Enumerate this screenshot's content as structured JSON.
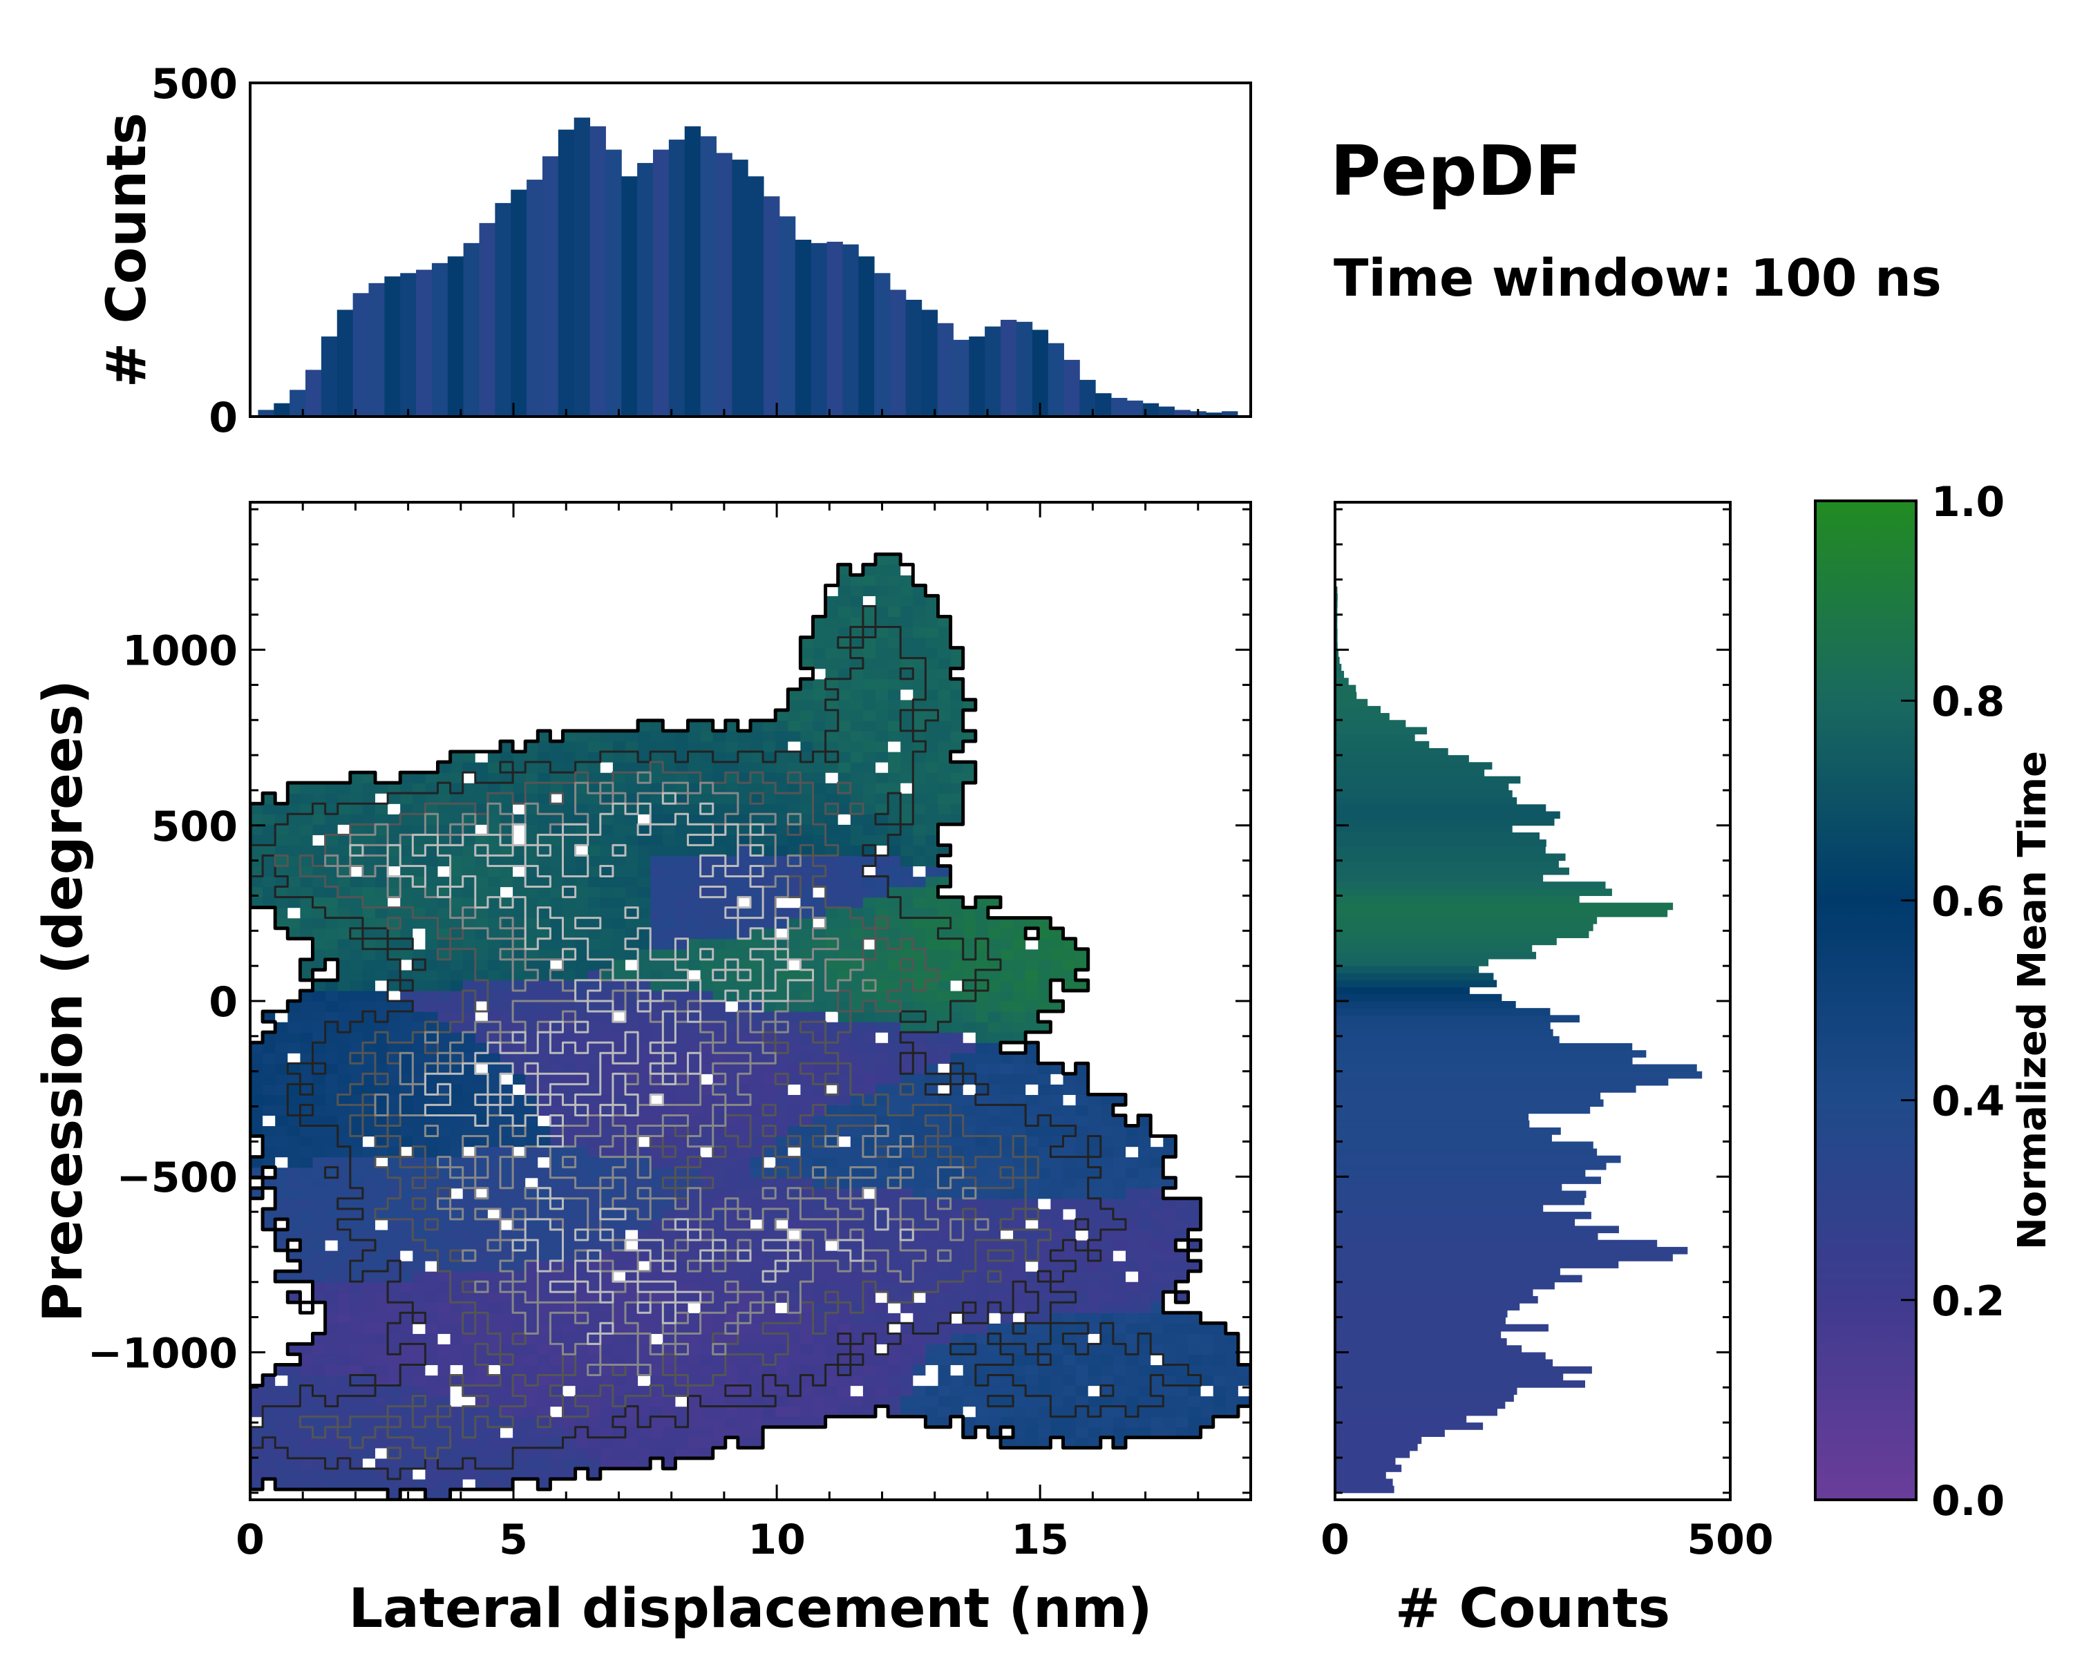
{
  "title": "PepDF",
  "subtitle": "Time window: 100 ns",
  "chart_data": [
    {
      "type": "bar",
      "name": "top-histogram",
      "xlabel": "",
      "ylabel": "# Counts",
      "xlim": [
        0,
        19
      ],
      "ylim": [
        0,
        500
      ],
      "yticks": [
        0,
        500
      ],
      "bins": [
        {
          "x": 0.3,
          "count": 10
        },
        {
          "x": 0.6,
          "count": 20
        },
        {
          "x": 0.9,
          "count": 40
        },
        {
          "x": 1.2,
          "count": 70
        },
        {
          "x": 1.5,
          "count": 120
        },
        {
          "x": 1.8,
          "count": 160
        },
        {
          "x": 2.1,
          "count": 185
        },
        {
          "x": 2.4,
          "count": 200
        },
        {
          "x": 2.7,
          "count": 210
        },
        {
          "x": 3.0,
          "count": 215
        },
        {
          "x": 3.3,
          "count": 220
        },
        {
          "x": 3.6,
          "count": 230
        },
        {
          "x": 3.9,
          "count": 240
        },
        {
          "x": 4.2,
          "count": 260
        },
        {
          "x": 4.5,
          "count": 290
        },
        {
          "x": 4.8,
          "count": 320
        },
        {
          "x": 5.1,
          "count": 340
        },
        {
          "x": 5.4,
          "count": 355
        },
        {
          "x": 5.7,
          "count": 390
        },
        {
          "x": 6.0,
          "count": 430
        },
        {
          "x": 6.3,
          "count": 448
        },
        {
          "x": 6.6,
          "count": 435
        },
        {
          "x": 6.9,
          "count": 400
        },
        {
          "x": 7.2,
          "count": 360
        },
        {
          "x": 7.5,
          "count": 380
        },
        {
          "x": 7.8,
          "count": 400
        },
        {
          "x": 8.1,
          "count": 415
        },
        {
          "x": 8.4,
          "count": 435
        },
        {
          "x": 8.7,
          "count": 420
        },
        {
          "x": 9.0,
          "count": 395
        },
        {
          "x": 9.3,
          "count": 385
        },
        {
          "x": 9.6,
          "count": 360
        },
        {
          "x": 9.9,
          "count": 330
        },
        {
          "x": 10.2,
          "count": 300
        },
        {
          "x": 10.5,
          "count": 265
        },
        {
          "x": 10.8,
          "count": 260
        },
        {
          "x": 11.1,
          "count": 262
        },
        {
          "x": 11.4,
          "count": 258
        },
        {
          "x": 11.7,
          "count": 240
        },
        {
          "x": 12.0,
          "count": 215
        },
        {
          "x": 12.3,
          "count": 190
        },
        {
          "x": 12.6,
          "count": 175
        },
        {
          "x": 12.9,
          "count": 160
        },
        {
          "x": 13.2,
          "count": 140
        },
        {
          "x": 13.5,
          "count": 115
        },
        {
          "x": 13.8,
          "count": 120
        },
        {
          "x": 14.1,
          "count": 135
        },
        {
          "x": 14.4,
          "count": 145
        },
        {
          "x": 14.7,
          "count": 142
        },
        {
          "x": 15.0,
          "count": 130
        },
        {
          "x": 15.3,
          "count": 110
        },
        {
          "x": 15.6,
          "count": 85
        },
        {
          "x": 15.9,
          "count": 55
        },
        {
          "x": 16.2,
          "count": 35
        },
        {
          "x": 16.5,
          "count": 28
        },
        {
          "x": 16.8,
          "count": 24
        },
        {
          "x": 17.1,
          "count": 20
        },
        {
          "x": 17.4,
          "count": 15
        },
        {
          "x": 17.7,
          "count": 10
        },
        {
          "x": 18.0,
          "count": 8
        },
        {
          "x": 18.3,
          "count": 6
        },
        {
          "x": 18.6,
          "count": 8
        }
      ]
    },
    {
      "type": "heatmap",
      "name": "main-2d-histogram",
      "xlabel": "Lateral displacement (nm)",
      "ylabel": "Precession (degrees)",
      "xlim": [
        0,
        19
      ],
      "ylim": [
        -1420,
        1420
      ],
      "xticks": [
        0,
        5,
        10,
        15
      ],
      "yticks": [
        -1000,
        -500,
        0,
        500,
        1000
      ],
      "clusters": [
        {
          "x": 2.5,
          "y": 430,
          "sx": 2.0,
          "sy": 100,
          "t": 0.75,
          "w": 0.8
        },
        {
          "x": 5.5,
          "y": 300,
          "sx": 2.5,
          "sy": 160,
          "t": 0.78,
          "w": 1.0
        },
        {
          "x": 8.0,
          "y": 550,
          "sx": 2.5,
          "sy": 130,
          "t": 0.74,
          "w": 0.9
        },
        {
          "x": 8.5,
          "y": 300,
          "sx": 2.0,
          "sy": 150,
          "t": 0.25,
          "w": 0.8
        },
        {
          "x": 10.5,
          "y": 100,
          "sx": 3.0,
          "sy": 120,
          "t": 0.88,
          "w": 0.8
        },
        {
          "x": 12.0,
          "y": 870,
          "sx": 1.0,
          "sy": 250,
          "t": 0.78,
          "w": 0.6
        },
        {
          "x": 7.5,
          "y": -180,
          "sx": 3.0,
          "sy": 180,
          "t": 0.18,
          "w": 1.0
        },
        {
          "x": 4.0,
          "y": -250,
          "sx": 2.5,
          "sy": 150,
          "t": 0.55,
          "w": 0.8
        },
        {
          "x": 13.0,
          "y": -420,
          "sx": 2.5,
          "sy": 150,
          "t": 0.45,
          "w": 0.7
        },
        {
          "x": 5.0,
          "y": -600,
          "sx": 2.5,
          "sy": 150,
          "t": 0.35,
          "w": 0.8
        },
        {
          "x": 11.5,
          "y": -700,
          "sx": 3.5,
          "sy": 140,
          "t": 0.22,
          "w": 0.9
        },
        {
          "x": 7.0,
          "y": -950,
          "sx": 3.0,
          "sy": 180,
          "t": 0.18,
          "w": 1.0
        },
        {
          "x": 2.5,
          "y": -1230,
          "sx": 2.5,
          "sy": 100,
          "t": 0.27,
          "w": 0.7
        },
        {
          "x": 16.0,
          "y": -1080,
          "sx": 2.0,
          "sy": 120,
          "t": 0.45,
          "w": 0.6
        }
      ]
    },
    {
      "type": "bar",
      "orientation": "horizontal",
      "name": "right-histogram",
      "xlabel": "# Counts",
      "xlim": [
        0,
        500
      ],
      "xticks": [
        0,
        500
      ],
      "bins": [
        {
          "y": 1100,
          "count": 3,
          "t": 0.78
        },
        {
          "y": 1000,
          "count": 3,
          "t": 0.78
        },
        {
          "y": 920,
          "count": 10,
          "t": 0.8
        },
        {
          "y": 860,
          "count": 30,
          "t": 0.82
        },
        {
          "y": 790,
          "count": 80,
          "t": 0.8
        },
        {
          "y": 730,
          "count": 125,
          "t": 0.78
        },
        {
          "y": 660,
          "count": 180,
          "t": 0.76
        },
        {
          "y": 590,
          "count": 230,
          "t": 0.75
        },
        {
          "y": 530,
          "count": 260,
          "t": 0.72
        },
        {
          "y": 470,
          "count": 230,
          "t": 0.74
        },
        {
          "y": 410,
          "count": 250,
          "t": 0.76
        },
        {
          "y": 340,
          "count": 300,
          "t": 0.78
        },
        {
          "y": 260,
          "count": 385,
          "t": 0.85
        },
        {
          "y": 180,
          "count": 310,
          "t": 0.83
        },
        {
          "y": 100,
          "count": 220,
          "t": 0.78
        },
        {
          "y": 20,
          "count": 180,
          "t": 0.6
        },
        {
          "y": -60,
          "count": 280,
          "t": 0.45
        },
        {
          "y": -140,
          "count": 350,
          "t": 0.42
        },
        {
          "y": -200,
          "count": 470,
          "t": 0.4
        },
        {
          "y": -280,
          "count": 330,
          "t": 0.38
        },
        {
          "y": -360,
          "count": 250,
          "t": 0.38
        },
        {
          "y": -430,
          "count": 330,
          "t": 0.38
        },
        {
          "y": -500,
          "count": 300,
          "t": 0.36
        },
        {
          "y": -580,
          "count": 280,
          "t": 0.34
        },
        {
          "y": -660,
          "count": 360,
          "t": 0.32
        },
        {
          "y": -730,
          "count": 400,
          "t": 0.3
        },
        {
          "y": -800,
          "count": 300,
          "t": 0.3
        },
        {
          "y": -880,
          "count": 250,
          "t": 0.28
        },
        {
          "y": -960,
          "count": 230,
          "t": 0.28
        },
        {
          "y": -1040,
          "count": 310,
          "t": 0.28
        },
        {
          "y": -1120,
          "count": 270,
          "t": 0.28
        },
        {
          "y": -1200,
          "count": 180,
          "t": 0.27
        },
        {
          "y": -1270,
          "count": 120,
          "t": 0.27
        },
        {
          "y": -1350,
          "count": 70,
          "t": 0.27
        }
      ]
    },
    {
      "type": "colorbar",
      "name": "colorbar",
      "label": "Normalized Mean Time",
      "range": [
        0.0,
        1.0
      ],
      "ticks": [
        "0.0",
        "0.2",
        "0.4",
        "0.6",
        "0.8",
        "1.0"
      ],
      "colors": [
        "#6a3d9a",
        "#3f3b8e",
        "#1f4a8a",
        "#003a6b",
        "#19695f",
        "#228b22"
      ]
    }
  ]
}
